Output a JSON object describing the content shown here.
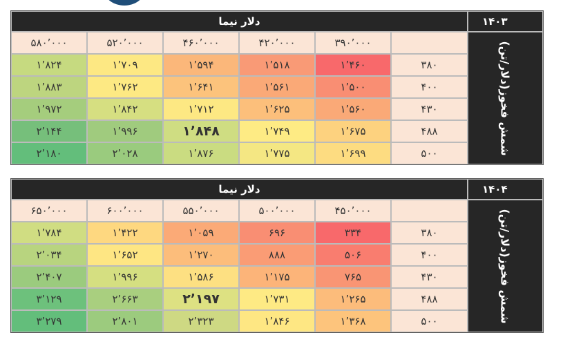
{
  "tables": [
    {
      "year": "۱۴۰۳",
      "header": "دلار نیما",
      "side_label": "شمش فخوز(دلار/تن)",
      "columns": [
        "۳۹۰٬۰۰۰",
        "۴۲۰٬۰۰۰",
        "۴۶۰٬۰۰۰",
        "۵۲۰٬۰۰۰",
        "۵۸۰٬۰۰۰"
      ],
      "rows": [
        {
          "label": "۳۸۰",
          "cells": [
            "۱٬۴۶۰",
            "۱٬۵۱۸",
            "۱٬۵۹۴",
            "۱٬۷۰۹",
            "۱٬۸۲۴"
          ],
          "colors": [
            "#f8696b",
            "#f99a76",
            "#fbb77a",
            "#fde883",
            "#c6da80"
          ]
        },
        {
          "label": "۴۰۰",
          "cells": [
            "۱٬۵۰۰",
            "۱٬۵۶۱",
            "۱٬۶۴۱",
            "۱٬۷۶۲",
            "۱٬۸۸۳"
          ],
          "colors": [
            "#f98e73",
            "#faa977",
            "#fcc37c",
            "#fde983",
            "#bdd57f"
          ]
        },
        {
          "label": "۴۳۰",
          "cells": [
            "۱٬۵۶۰",
            "۱٬۶۲۵",
            "۱٬۷۱۲",
            "۱٬۸۴۲",
            "۱٬۹۷۲"
          ],
          "colors": [
            "#faa977",
            "#fcbf7b",
            "#fde883",
            "#d6df81",
            "#a5cd7d"
          ]
        },
        {
          "label": "۴۸۸",
          "cells": [
            "۱٬۶۷۵",
            "۱٬۷۴۹",
            "۱٬۸۴۸",
            "۱٬۹۹۶",
            "۲٬۱۴۴"
          ],
          "colors": [
            "#fdd27f",
            "#feeb84",
            "#cfdd82",
            "#a0cb7e",
            "#76bf7b"
          ]
        },
        {
          "label": "۵۰۰",
          "cells": [
            "۱٬۶۹۹",
            "۱٬۷۷۵",
            "۱٬۸۷۶",
            "۲٬۰۲۸",
            "۲٬۱۸۰"
          ],
          "colors": [
            "#fddc81",
            "#f4e783",
            "#cadc81",
            "#9acb7e",
            "#63be7b"
          ]
        }
      ],
      "bold_cell": [
        3,
        2
      ]
    },
    {
      "year": "۱۴۰۴",
      "header": "دلار نیما",
      "side_label": "شمش فخوز(دلار/تن)",
      "columns": [
        "۴۵۰٬۰۰۰",
        "۵۰۰٬۰۰۰",
        "۵۵۰٬۰۰۰",
        "۶۰۰٬۰۰۰",
        "۶۵۰٬۰۰۰"
      ],
      "rows": [
        {
          "label": "۳۸۰",
          "cells": [
            "۳۳۴",
            "۶۹۶",
            "۱٬۰۵۹",
            "۱٬۴۲۲",
            "۱٬۷۸۴"
          ],
          "colors": [
            "#f8696b",
            "#f98e73",
            "#fbaa77",
            "#fed880",
            "#d0dd82"
          ]
        },
        {
          "label": "۴۰۰",
          "cells": [
            "۵۰۶",
            "۸۸۸",
            "۱٬۲۷۰",
            "۱٬۶۵۲",
            "۲٬۰۳۴"
          ],
          "colors": [
            "#f97d6f",
            "#fa9c75",
            "#fcbd7b",
            "#fee683",
            "#b8d47f"
          ]
        },
        {
          "label": "۴۳۰",
          "cells": [
            "۷۶۵",
            "۱٬۱۷۵",
            "۱٬۵۸۶",
            "۱٬۹۹۶",
            "۲٬۴۰۷"
          ],
          "colors": [
            "#f99574",
            "#fcb479",
            "#fde082",
            "#d5df81",
            "#9bcb7e"
          ]
        },
        {
          "label": "۴۸۸",
          "cells": [
            "۱٬۲۶۵",
            "۱٬۷۳۱",
            "۲٬۱۹۷",
            "۲٬۶۶۳",
            "۳٬۱۲۹"
          ],
          "colors": [
            "#fcbc7b",
            "#feea84",
            "#dde182",
            "#a9cf7f",
            "#6dc17c"
          ]
        },
        {
          "label": "۵۰۰",
          "cells": [
            "۱٬۳۶۸",
            "۱٬۸۴۶",
            "۲٬۳۲۳",
            "۲٬۸۰۱",
            "۳٬۲۷۹"
          ],
          "colors": [
            "#fdc47c",
            "#fee783",
            "#ced983",
            "#9ccb7e",
            "#63be7b"
          ]
        }
      ],
      "bold_cell": [
        3,
        2
      ]
    }
  ]
}
